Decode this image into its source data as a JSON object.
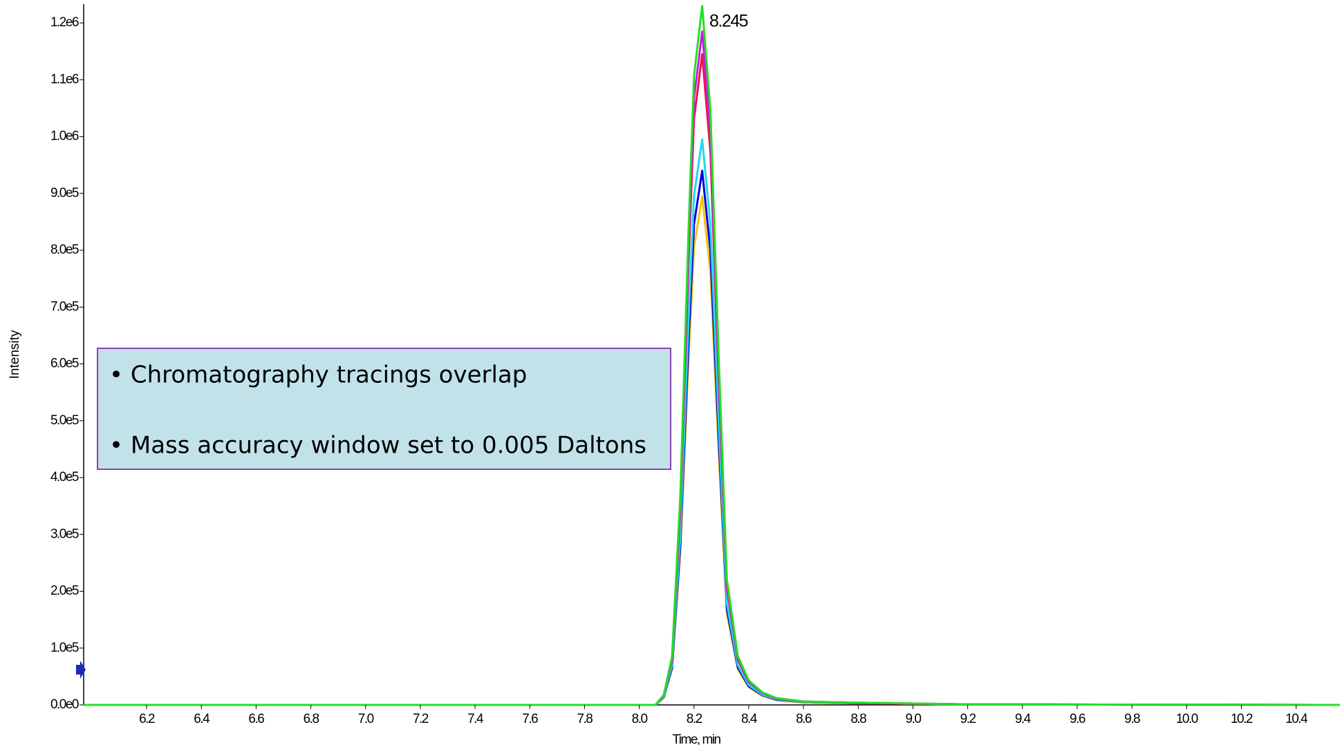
{
  "chart_data": {
    "type": "line",
    "x": [
      5.97,
      8.0,
      8.06,
      8.09,
      8.12,
      8.15,
      8.18,
      8.2,
      8.23,
      8.26,
      8.29,
      8.32,
      8.36,
      8.4,
      8.45,
      8.5,
      8.6,
      8.8,
      9.2,
      10.56
    ],
    "series": [
      {
        "color": "#f5c400",
        "values": [
          0,
          0,
          0,
          13000,
          63000,
          269000,
          609000,
          806000,
          895000,
          761000,
          448000,
          161000,
          63000,
          31000,
          16000,
          9000,
          4000,
          3000,
          1000,
          0
        ]
      },
      {
        "color": "#0000e0",
        "values": [
          0,
          0,
          0,
          14000,
          66000,
          282000,
          639000,
          846000,
          940000,
          799000,
          470000,
          169000,
          66000,
          33000,
          17000,
          9000,
          5000,
          3000,
          1000,
          0
        ]
      },
      {
        "color": "#22d8f0",
        "values": [
          0,
          0,
          0,
          15000,
          70000,
          299000,
          677000,
          896000,
          995000,
          846000,
          498000,
          179000,
          70000,
          35000,
          18000,
          10000,
          5000,
          3000,
          1000,
          0
        ]
      },
      {
        "color": "#f0104a",
        "values": [
          0,
          0,
          0,
          17000,
          80000,
          344000,
          779000,
          1031000,
          1145000,
          973000,
          573000,
          206000,
          80000,
          40000,
          21000,
          11000,
          6000,
          3000,
          1000,
          0
        ]
      },
      {
        "color": "#c020e0",
        "values": [
          0,
          0,
          0,
          18000,
          83000,
          356000,
          806000,
          1067000,
          1185000,
          1007000,
          593000,
          213000,
          83000,
          41000,
          21000,
          12000,
          6000,
          4000,
          1000,
          0
        ]
      },
      {
        "color": "#22e022",
        "values": [
          0,
          0,
          0,
          18000,
          86000,
          369000,
          836000,
          1107000,
          1230000,
          1046000,
          615000,
          221000,
          86000,
          43000,
          22000,
          12000,
          6000,
          4000,
          1000,
          0
        ]
      }
    ],
    "xlim": [
      5.97,
      10.56
    ],
    "ylim": [
      0,
      1233000
    ],
    "xticks": [
      6.2,
      6.4,
      6.6,
      6.8,
      {
        "value": 7.0,
        "label": "7.0"
      },
      7.2,
      7.4,
      7.6,
      7.8,
      {
        "value": 8.0,
        "label": "8.0"
      },
      8.2,
      8.4,
      8.6,
      8.8,
      {
        "value": 9.0,
        "label": "9.0"
      },
      9.2,
      9.4,
      9.6,
      9.8,
      {
        "value": 10.0,
        "label": "10.0"
      },
      10.2,
      10.4
    ],
    "yticks": [
      {
        "value": 0,
        "label": "0.0e0"
      },
      {
        "value": 100000,
        "label": "1.0e5"
      },
      {
        "value": 200000,
        "label": "2.0e5"
      },
      {
        "value": 300000,
        "label": "3.0e5"
      },
      {
        "value": 400000,
        "label": "4.0e5"
      },
      {
        "value": 500000,
        "label": "5.0e5"
      },
      {
        "value": 600000,
        "label": "6.0e5"
      },
      {
        "value": 700000,
        "label": "7.0e5"
      },
      {
        "value": 800000,
        "label": "8.0e5"
      },
      {
        "value": 900000,
        "label": "9.0e5"
      },
      {
        "value": 1000000,
        "label": "1.0e6"
      },
      {
        "value": 1100000,
        "label": "1.1e6"
      },
      {
        "value": 1200000,
        "label": "1.2e6"
      }
    ],
    "xlabel": "Time, min",
    "ylabel": "Intensity",
    "peak_label": "8.245",
    "notes": [
      "• Chromatography tracings overlap",
      "• Mass accuracy window set to 0.005 Daltons"
    ]
  }
}
